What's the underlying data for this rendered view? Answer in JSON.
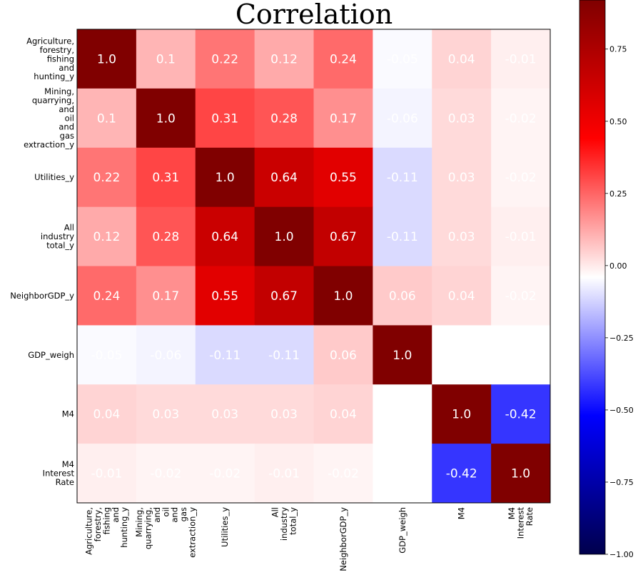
{
  "chart_data": {
    "type": "heatmap",
    "title": "Correlation",
    "labels": [
      [
        "Agriculture,",
        "forestry,",
        "fishing",
        "and",
        "hunting_y"
      ],
      [
        "Mining,",
        "quarrying,",
        "and",
        "oil",
        "and",
        "gas",
        "extraction_y"
      ],
      [
        "Utilities_y"
      ],
      [
        "All",
        "industry",
        "total_y"
      ],
      [
        "NeighborGDP_y"
      ],
      [
        "GDP_weigh"
      ],
      [
        "M4"
      ],
      [
        "M4",
        "Interest",
        "Rate"
      ]
    ],
    "values": [
      [
        1.0,
        0.1,
        0.22,
        0.12,
        0.24,
        -0.05,
        0.04,
        -0.01
      ],
      [
        0.1,
        1.0,
        0.31,
        0.28,
        0.17,
        -0.06,
        0.03,
        -0.02
      ],
      [
        0.22,
        0.31,
        1.0,
        0.64,
        0.55,
        -0.11,
        0.03,
        -0.02
      ],
      [
        0.12,
        0.28,
        0.64,
        1.0,
        0.67,
        -0.11,
        0.03,
        -0.01
      ],
      [
        0.24,
        0.17,
        0.55,
        0.67,
        1.0,
        0.06,
        0.04,
        -0.02
      ],
      [
        -0.05,
        -0.06,
        -0.11,
        -0.11,
        0.06,
        1.0,
        null,
        null
      ],
      [
        0.04,
        0.03,
        0.03,
        0.03,
        0.04,
        null,
        1.0,
        -0.42
      ],
      [
        -0.01,
        -0.02,
        -0.02,
        -0.01,
        -0.02,
        null,
        -0.42,
        1.0
      ]
    ],
    "display": [
      [
        "1.0",
        "0.1",
        "0.22",
        "0.12",
        "0.24",
        "-0.05",
        "0.04",
        "-0.01"
      ],
      [
        "0.1",
        "1.0",
        "0.31",
        "0.28",
        "0.17",
        "-0.06",
        "0.03",
        "-0.02"
      ],
      [
        "0.22",
        "0.31",
        "1.0",
        "0.64",
        "0.55",
        "-0.11",
        "0.03",
        "-0.02"
      ],
      [
        "0.12",
        "0.28",
        "0.64",
        "1.0",
        "0.67",
        "-0.11",
        "0.03",
        "-0.01"
      ],
      [
        "0.24",
        "0.17",
        "0.55",
        "0.67",
        "1.0",
        "0.06",
        "0.04",
        "-0.02"
      ],
      [
        "-0.05",
        "-0.06",
        "-0.11",
        "-0.11",
        "0.06",
        "1.0",
        "",
        ""
      ],
      [
        "0.04",
        "0.03",
        "0.03",
        "0.03",
        "0.04",
        "",
        "1.0",
        "-0.42"
      ],
      [
        "-0.01",
        "-0.02",
        "-0.02",
        "-0.01",
        "-0.02",
        "",
        "-0.42",
        "1.0"
      ]
    ],
    "colormap": "seismic",
    "colorbar": {
      "range": [
        -1.0,
        1.0
      ],
      "vmax": 0.92,
      "ticks": [
        0.75,
        0.5,
        0.25,
        0.0,
        -0.25,
        -0.5,
        -0.75,
        -1.0
      ],
      "tick_labels": [
        "0.75",
        "0.50",
        "0.25",
        "0.00",
        "−0.25",
        "−0.50",
        "−0.75",
        "−1.00"
      ]
    },
    "grid": false
  }
}
